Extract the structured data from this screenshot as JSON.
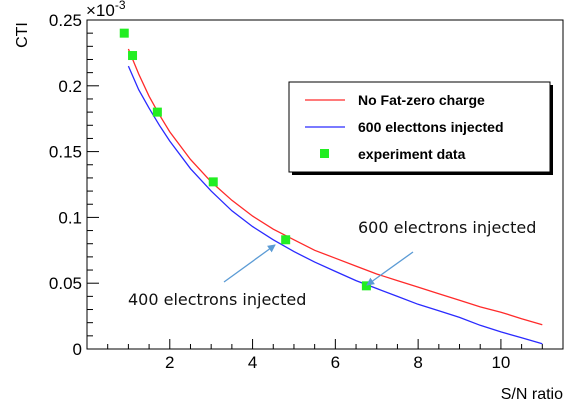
{
  "chart_data": {
    "type": "line",
    "title": "",
    "xlabel": "S/N ratio",
    "ylabel": "CTI",
    "y_multiplier_label": "×10",
    "y_multiplier_exponent": "-3",
    "xlim": [
      0,
      11.5
    ],
    "ylim": [
      0,
      0.25
    ],
    "x_ticks": [
      2,
      4,
      6,
      8,
      10
    ],
    "x_tick_labels": [
      "2",
      "4",
      "6",
      "8",
      "10"
    ],
    "y_ticks": [
      0,
      0.05,
      0.1,
      0.15,
      0.2,
      0.25
    ],
    "y_tick_labels": [
      "0",
      "0.05",
      "0.1",
      "0.15",
      "0.2",
      "0.25"
    ],
    "grid": false,
    "legend_position": "upper-right",
    "series": [
      {
        "name": "No Fat-zero charge",
        "kind": "line",
        "color": "#ff2a2a",
        "x": [
          1.0,
          1.25,
          1.5,
          1.75,
          2.0,
          2.5,
          3.0,
          3.5,
          4.0,
          4.5,
          5.0,
          5.5,
          6.0,
          6.5,
          7.0,
          7.5,
          8.0,
          8.5,
          9.0,
          9.5,
          10.0,
          10.5,
          11.0
        ],
        "y": [
          0.228,
          0.209,
          0.192,
          0.178,
          0.165,
          0.144,
          0.127,
          0.113,
          0.101,
          0.091,
          0.083,
          0.075,
          0.069,
          0.063,
          0.057,
          0.052,
          0.047,
          0.042,
          0.037,
          0.032,
          0.028,
          0.023,
          0.0185
        ]
      },
      {
        "name": "600 electtons injected",
        "kind": "line",
        "color": "#2a2aff",
        "x": [
          1.0,
          1.25,
          1.5,
          1.75,
          2.0,
          2.5,
          3.0,
          3.5,
          4.0,
          4.5,
          5.0,
          5.5,
          6.0,
          6.5,
          7.0,
          7.5,
          8.0,
          8.5,
          9.0,
          9.5,
          10.0,
          10.5,
          11.0
        ],
        "y": [
          0.215,
          0.197,
          0.183,
          0.17,
          0.158,
          0.137,
          0.12,
          0.105,
          0.093,
          0.083,
          0.074,
          0.066,
          0.059,
          0.052,
          0.046,
          0.04,
          0.034,
          0.029,
          0.024,
          0.018,
          0.013,
          0.0085,
          0.004
        ]
      },
      {
        "name": "experiment data",
        "kind": "scatter",
        "color": "#22ee22",
        "x": [
          0.9,
          1.1,
          1.7,
          3.05,
          4.8,
          6.75
        ],
        "y": [
          0.24,
          0.223,
          0.18,
          0.127,
          0.083,
          0.048
        ]
      }
    ],
    "annotations": [
      {
        "text": "600 electrons injected",
        "point": [
          6.75,
          0.048
        ]
      },
      {
        "text": "400 electrons injected",
        "point": [
          4.8,
          0.083
        ]
      }
    ]
  }
}
